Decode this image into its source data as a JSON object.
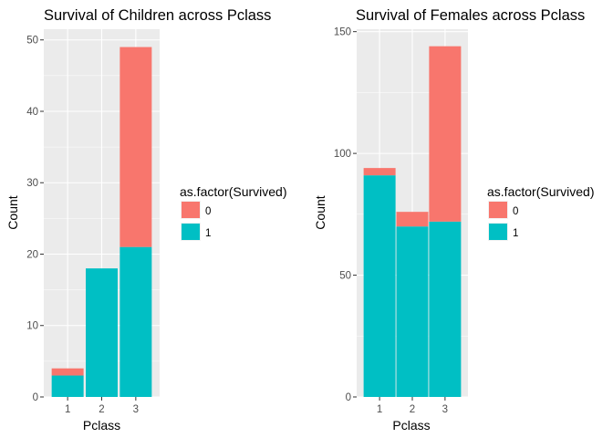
{
  "chart_data": [
    {
      "type": "bar",
      "stacked": true,
      "title": "Survival of Children across Pclass",
      "xlabel": "Pclass",
      "ylabel": "Count",
      "categories": [
        "1",
        "2",
        "3"
      ],
      "ylim": [
        0,
        51.5
      ],
      "yticks": [
        0,
        10,
        20,
        30,
        40,
        50
      ],
      "grid": true,
      "legend": {
        "title": "as.factor(Survived)",
        "position": "right"
      },
      "series": [
        {
          "name": "0",
          "color": "#F8766D",
          "values": [
            1,
            0,
            28
          ]
        },
        {
          "name": "1",
          "color": "#00BFC4",
          "values": [
            3,
            18,
            21
          ]
        }
      ]
    },
    {
      "type": "bar",
      "stacked": true,
      "title": "Survival of Females across Pclass",
      "xlabel": "Pclass",
      "ylabel": "Count",
      "categories": [
        "1",
        "2",
        "3"
      ],
      "ylim": [
        0,
        151
      ],
      "yticks": [
        0,
        50,
        100,
        150
      ],
      "grid": true,
      "legend": {
        "title": "as.factor(Survived)",
        "position": "right"
      },
      "series": [
        {
          "name": "0",
          "color": "#F8766D",
          "values": [
            3,
            6,
            72
          ]
        },
        {
          "name": "1",
          "color": "#00BFC4",
          "values": [
            91,
            70,
            72
          ]
        }
      ]
    }
  ]
}
